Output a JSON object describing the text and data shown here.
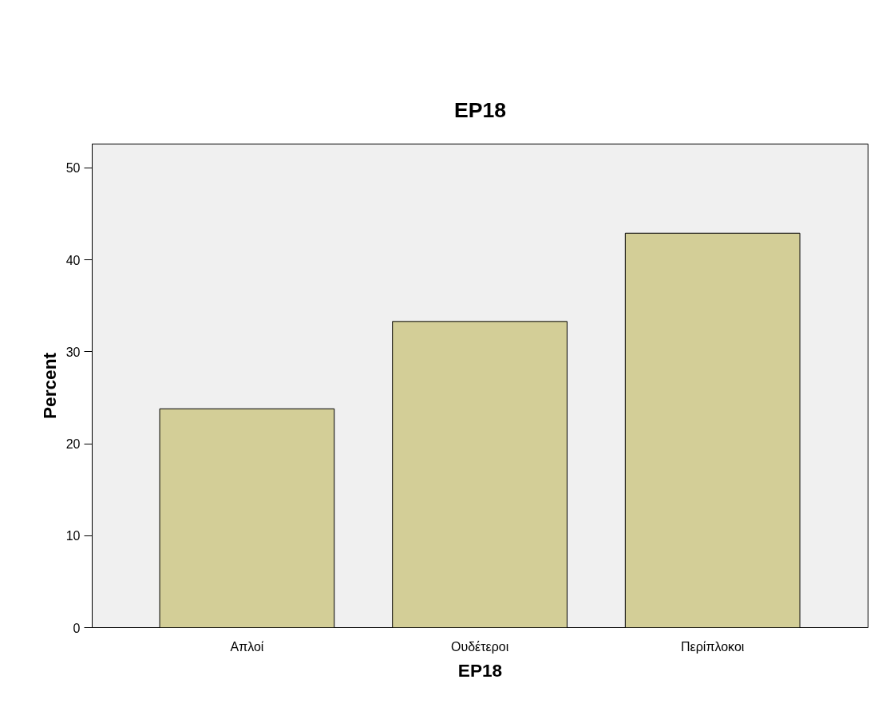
{
  "chart_data": {
    "type": "bar",
    "title": "EP18",
    "xlabel": "EP18",
    "ylabel": "Percent",
    "categories": [
      "Απλοί",
      "Ουδέτεροι",
      "Περίπλοκοι"
    ],
    "values": [
      23.8,
      33.3,
      42.9
    ],
    "color": "#d3ce97",
    "ylim": [
      0,
      52.6
    ],
    "yticks": [
      0,
      10,
      20,
      30,
      40,
      50
    ],
    "grid": false
  }
}
